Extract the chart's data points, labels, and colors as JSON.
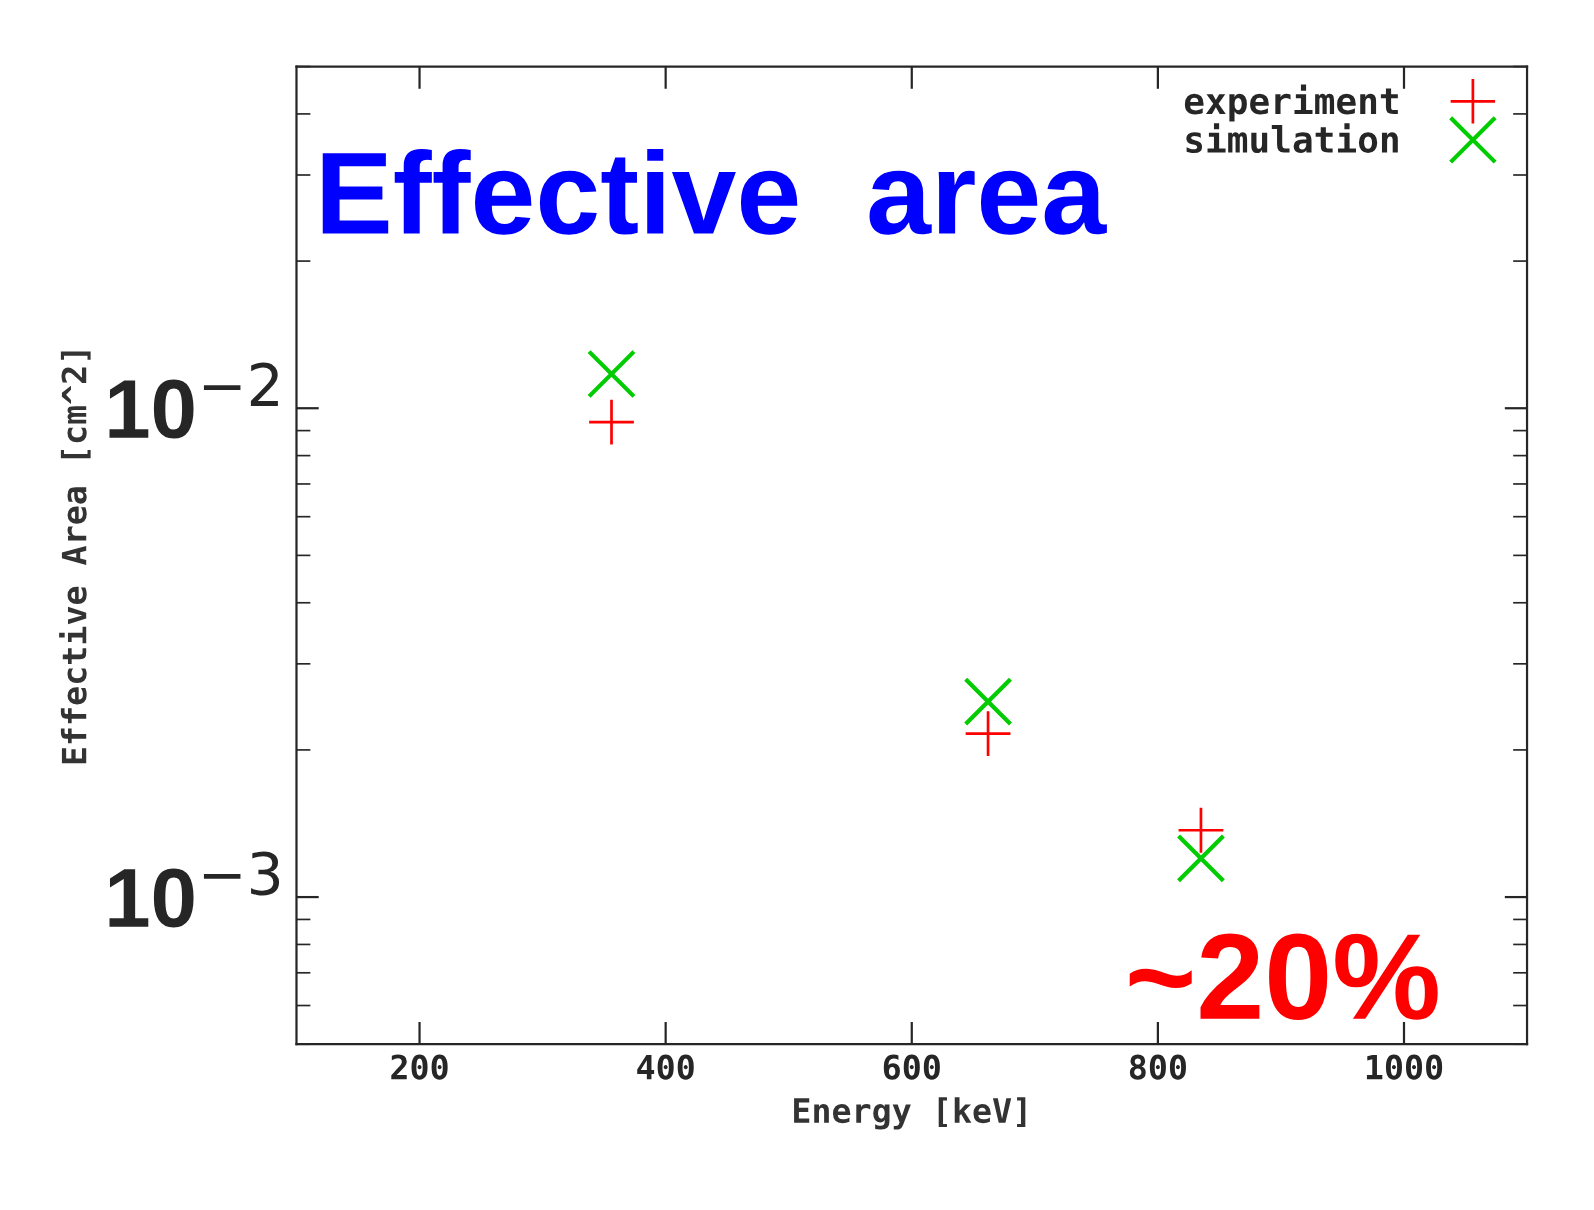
{
  "chart_data": {
    "type": "scatter",
    "xlabel": "Energy [keV]",
    "ylabel": "Effective Area [cm^2]",
    "x": [
      356,
      662,
      835
    ],
    "series": [
      {
        "name": "experiment",
        "color": "#ff0000",
        "marker": "cross",
        "values": [
          0.00937,
          0.00216,
          0.00137
        ]
      },
      {
        "name": "simulation",
        "color": "#00cc00",
        "marker": "cross",
        "values": [
          0.01175,
          0.00251,
          0.0012
        ]
      }
    ],
    "log": "y",
    "xlim": [
      100,
      1100
    ],
    "xticks": [
      200,
      400,
      600,
      800,
      1000
    ],
    "ylim": [
      0.0005,
      0.05
    ],
    "yticks": [
      {
        "value": 0.001,
        "label": "10$^{−3}$"
      },
      {
        "value": 0.01,
        "label": "10$^{−2}$"
      }
    ],
    "grid": false,
    "legend": "top right",
    "annotations": [
      "Effective  area",
      "~20%"
    ]
  }
}
